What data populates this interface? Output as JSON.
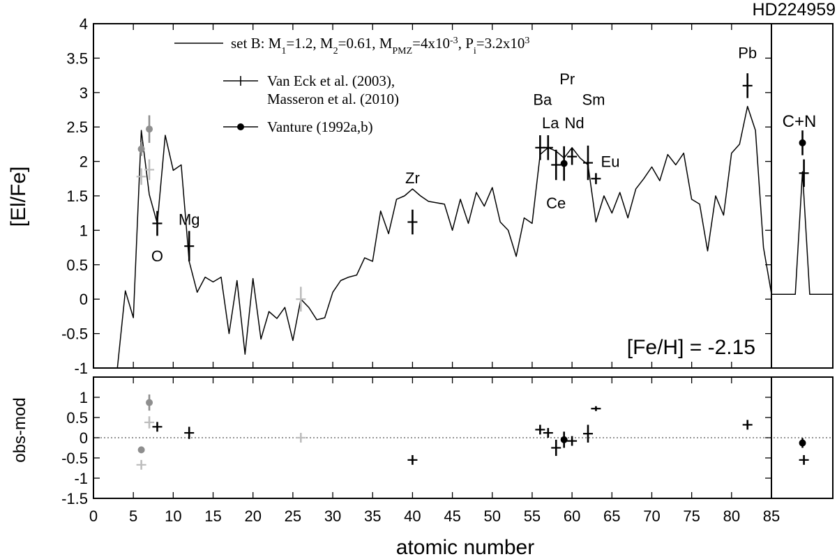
{
  "chart_data": [
    {
      "type": "line",
      "title": "HD224959",
      "ylabel": "[El/Fe]",
      "xlabel": "atomic number",
      "xlim": [
        0,
        85
      ],
      "ylim": [
        -1,
        4
      ],
      "x_ticks": [
        "0",
        "5",
        "10",
        "15",
        "20",
        "25",
        "30",
        "35",
        "40",
        "45",
        "50",
        "55",
        "60",
        "65",
        "70",
        "75",
        "80",
        "85"
      ],
      "y_ticks": [
        "4",
        "3.5",
        "3",
        "2.5",
        "2",
        "1.5",
        "1",
        "0.5",
        "0",
        "-0.5",
        "-1"
      ],
      "annotation": "[Fe/H] = -2.15",
      "legend": {
        "model": "set B: M1=1.2, M2=0.61, MPMZ=4x10-3, Pi=3.2x103",
        "model_parts": {
          "pre": "set B: M",
          "s1": "1",
          "t1": "=1.2, M",
          "s2": "2",
          "t2": "=0.61, M",
          "s3": "PMZ",
          "t3": "=4x10",
          "p3": "-3",
          "t4": ", P",
          "s4": "i",
          "t5": "=3.2x10",
          "p5": "3"
        },
        "obs1_line1": "Van Eck et al. (2003),",
        "obs1_line2": "Masseron et al. (2010)",
        "obs2": "Vanture (1992a,b)"
      },
      "colors": {
        "model": "#000000",
        "obs_black": "#000000",
        "obs_gray": "#999999",
        "obs_lightgray": "#bbbbbb"
      },
      "element_labels": [
        {
          "text": "O",
          "x": 8,
          "y": 0.55
        },
        {
          "text": "Mg",
          "x": 12,
          "y": 1.08
        },
        {
          "text": "Zr",
          "x": 40,
          "y": 1.68
        },
        {
          "text": "Ba",
          "x": 56.3,
          "y": 2.82
        },
        {
          "text": "La",
          "x": 57.3,
          "y": 2.48
        },
        {
          "text": "Pr",
          "x": 59.4,
          "y": 3.12
        },
        {
          "text": "Nd",
          "x": 60.3,
          "y": 2.48
        },
        {
          "text": "Sm",
          "x": 62.7,
          "y": 2.82
        },
        {
          "text": "Ce",
          "x": 58.0,
          "y": 1.32
        },
        {
          "text": "Eu",
          "x": 64.8,
          "y": 1.92
        },
        {
          "text": "Pb",
          "x": 82,
          "y": 3.5
        }
      ],
      "model_series": {
        "name": "set B",
        "x": [
          3,
          4,
          5,
          6,
          7,
          8,
          9,
          10,
          11,
          12,
          13,
          14,
          15,
          16,
          17,
          18,
          19,
          20,
          21,
          22,
          23,
          24,
          25,
          26,
          27,
          28,
          29,
          30,
          31,
          32,
          33,
          34,
          35,
          36,
          37,
          38,
          39,
          40,
          41,
          42,
          43,
          44,
          45,
          46,
          47,
          48,
          49,
          50,
          51,
          52,
          53,
          54,
          55,
          56,
          57,
          58,
          59,
          60,
          61,
          62,
          63,
          64,
          65,
          66,
          67,
          68,
          69,
          70,
          71,
          72,
          73,
          74,
          75,
          76,
          77,
          78,
          79,
          80,
          81,
          82,
          83,
          84,
          85
        ],
        "y": [
          -1.0,
          0.12,
          -0.27,
          2.45,
          1.52,
          1.1,
          2.38,
          1.87,
          1.95,
          0.55,
          0.1,
          0.32,
          0.25,
          0.32,
          -0.5,
          0.27,
          -0.8,
          0.3,
          -0.58,
          -0.18,
          -0.28,
          -0.12,
          -0.6,
          0.0,
          -0.12,
          -0.3,
          -0.27,
          0.1,
          0.27,
          0.32,
          0.35,
          0.6,
          0.55,
          1.28,
          0.95,
          1.45,
          1.5,
          1.6,
          1.5,
          1.42,
          1.4,
          1.38,
          1.0,
          1.45,
          1.1,
          1.55,
          1.35,
          1.62,
          1.12,
          1.0,
          0.62,
          1.18,
          1.1,
          2.1,
          2.2,
          2.15,
          2.05,
          2.2,
          2.05,
          1.95,
          1.12,
          1.5,
          1.25,
          1.55,
          1.18,
          1.6,
          1.75,
          1.92,
          1.72,
          2.1,
          1.95,
          2.12,
          1.45,
          1.38,
          0.7,
          1.5,
          1.22,
          2.12,
          2.25,
          2.8,
          2.45,
          0.75,
          0.08
        ]
      },
      "observations": [
        {
          "x": 6,
          "y": 2.18,
          "err": 0.1,
          "marker": "circle",
          "color": "gray"
        },
        {
          "x": 7,
          "y": 2.47,
          "err": 0.2,
          "marker": "circle",
          "color": "gray"
        },
        {
          "x": 6,
          "y": 1.78,
          "err": 0.12,
          "marker": "plus",
          "color": "lightgray"
        },
        {
          "x": 7,
          "y": 1.88,
          "err": 0.15,
          "marker": "plus",
          "color": "lightgray"
        },
        {
          "x": 8,
          "y": 1.1,
          "err": 0.18,
          "marker": "plus",
          "color": "black"
        },
        {
          "x": 12,
          "y": 0.77,
          "err": 0.22,
          "marker": "plus",
          "color": "black"
        },
        {
          "x": 26,
          "y": 0.0,
          "err": 0.18,
          "marker": "plus",
          "color": "lightgray"
        },
        {
          "x": 40,
          "y": 1.12,
          "err": 0.18,
          "marker": "plus",
          "color": "black"
        },
        {
          "x": 56,
          "y": 2.2,
          "err": 0.18,
          "marker": "plus",
          "color": "black"
        },
        {
          "x": 57,
          "y": 2.2,
          "err": 0.18,
          "marker": "plus",
          "color": "black"
        },
        {
          "x": 58,
          "y": 1.95,
          "err": 0.22,
          "marker": "plus",
          "color": "black"
        },
        {
          "x": 59,
          "y": 1.97,
          "err": 0.25,
          "marker": "circle",
          "color": "black"
        },
        {
          "x": 60,
          "y": 2.07,
          "err": 0.12,
          "marker": "plus",
          "color": "black"
        },
        {
          "x": 62,
          "y": 1.98,
          "err": 0.25,
          "marker": "plus",
          "color": "black"
        },
        {
          "x": 63,
          "y": 1.75,
          "err": 0.08,
          "marker": "plus",
          "color": "black"
        },
        {
          "x": 82,
          "y": 3.1,
          "err": 0.18,
          "marker": "plus",
          "color": "black"
        }
      ]
    },
    {
      "type": "line",
      "title": "",
      "label": "C+N",
      "xlim": [
        84.5,
        93
      ],
      "ylim": [
        -1,
        4
      ],
      "model_series": {
        "x": [
          84.6,
          87.8,
          88.8,
          89.8,
          92.9
        ],
        "y": [
          0.07,
          0.07,
          1.85,
          0.07,
          0.07
        ]
      },
      "observations": [
        {
          "x": 88.8,
          "y": 2.27,
          "err": 0.18,
          "marker": "circle",
          "color": "black"
        },
        {
          "x": 89.0,
          "y": 1.83,
          "err": 0.2,
          "marker": "plus",
          "color": "black"
        }
      ]
    },
    {
      "type": "scatter",
      "ylabel": "obs-mod",
      "xlabel": "atomic number",
      "xlim": [
        0,
        85
      ],
      "ylim": [
        -1.5,
        1.5
      ],
      "y_ticks": [
        "1",
        "0.5",
        "0",
        "-0.5",
        "-1",
        "-1.5"
      ],
      "reference_line": 0,
      "observations": [
        {
          "x": 6,
          "y": -0.3,
          "err": 0.08,
          "marker": "circle",
          "color": "gray"
        },
        {
          "x": 7,
          "y": 0.87,
          "err": 0.2,
          "marker": "circle",
          "color": "gray"
        },
        {
          "x": 6,
          "y": -0.67,
          "err": 0.12,
          "marker": "plus",
          "color": "lightgray"
        },
        {
          "x": 7,
          "y": 0.38,
          "err": 0.15,
          "marker": "plus",
          "color": "lightgray"
        },
        {
          "x": 8,
          "y": 0.27,
          "err": 0.12,
          "marker": "plus",
          "color": "black"
        },
        {
          "x": 12,
          "y": 0.12,
          "err": 0.15,
          "marker": "plus",
          "color": "black"
        },
        {
          "x": 26,
          "y": 0.0,
          "err": 0.12,
          "marker": "plus",
          "color": "lightgray"
        },
        {
          "x": 40,
          "y": -0.55,
          "err": 0.12,
          "marker": "plus",
          "color": "black"
        },
        {
          "x": 56,
          "y": 0.2,
          "err": 0.12,
          "marker": "plus",
          "color": "black"
        },
        {
          "x": 57,
          "y": 0.12,
          "err": 0.12,
          "marker": "plus",
          "color": "black"
        },
        {
          "x": 58,
          "y": -0.25,
          "err": 0.2,
          "marker": "plus",
          "color": "black"
        },
        {
          "x": 59,
          "y": -0.05,
          "err": 0.2,
          "marker": "circle",
          "color": "black"
        },
        {
          "x": 60,
          "y": -0.08,
          "err": 0.12,
          "marker": "plus",
          "color": "black"
        },
        {
          "x": 62,
          "y": 0.1,
          "err": 0.22,
          "marker": "plus",
          "color": "black"
        },
        {
          "x": 63,
          "y": 0.72,
          "err": 0.06,
          "marker": "plus",
          "color": "black"
        },
        {
          "x": 82,
          "y": 0.32,
          "err": 0.12,
          "marker": "plus",
          "color": "black"
        }
      ]
    },
    {
      "type": "scatter",
      "xlim": [
        84.5,
        93
      ],
      "ylim": [
        -1.5,
        1.5
      ],
      "observations": [
        {
          "x": 88.8,
          "y": -0.13,
          "err": 0.12,
          "marker": "circle",
          "color": "black"
        },
        {
          "x": 89.0,
          "y": -0.55,
          "err": 0.12,
          "marker": "plus",
          "color": "black"
        }
      ]
    }
  ]
}
